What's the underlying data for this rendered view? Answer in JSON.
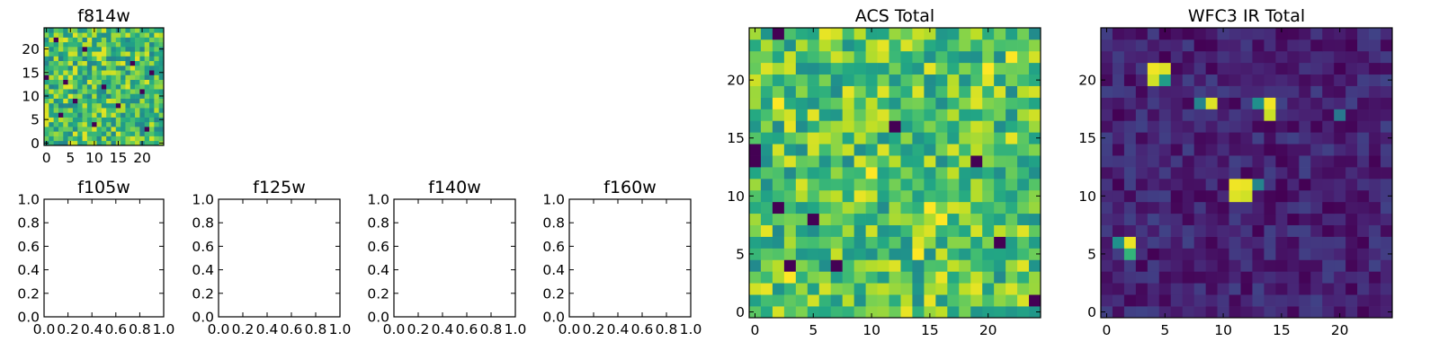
{
  "chart_data": [
    {
      "id": "f814w",
      "type": "heatmap",
      "title": "f814w",
      "colormap": "viridis",
      "grid_size": 25,
      "xlim": [
        -0.5,
        24.5
      ],
      "ylim": [
        -0.5,
        24.5
      ],
      "x_ticks": [
        0,
        5,
        10,
        15,
        20
      ],
      "y_ticks": [
        0,
        5,
        10,
        15,
        20
      ],
      "x_tick_labels": [
        "0",
        "5",
        "10",
        "15",
        "20"
      ],
      "y_tick_labels": [
        "0",
        "5",
        "10",
        "15",
        "20"
      ],
      "base_value": 0.7,
      "noise_amplitude": 0.26,
      "noise_seed": 814,
      "hot_pixels": [],
      "dark_pixels": [
        [
          2,
          22
        ],
        [
          8,
          20
        ],
        [
          18,
          17
        ],
        [
          22,
          15
        ],
        [
          4,
          13
        ],
        [
          12,
          12
        ],
        [
          20,
          11
        ],
        [
          6,
          9
        ],
        [
          15,
          8
        ],
        [
          3,
          6
        ],
        [
          10,
          4
        ],
        [
          21,
          3
        ],
        [
          0,
          14
        ]
      ]
    },
    {
      "id": "f105w",
      "type": "heatmap",
      "title": "f105w",
      "empty": true,
      "xlim": [
        0.0,
        1.0
      ],
      "ylim": [
        0.0,
        1.0
      ],
      "x_ticks": [
        0.0,
        0.2,
        0.4,
        0.6,
        0.8,
        1.0
      ],
      "y_ticks": [
        0.0,
        0.2,
        0.4,
        0.6,
        0.8,
        1.0
      ],
      "x_tick_labels": [
        "0.0",
        "0.2",
        "0.4",
        "0.6",
        "0.8",
        "1.0"
      ],
      "y_tick_labels": [
        "0.0",
        "0.2",
        "0.4",
        "0.6",
        "0.8",
        "1.0"
      ]
    },
    {
      "id": "f125w",
      "type": "heatmap",
      "title": "f125w",
      "empty": true,
      "xlim": [
        0.0,
        1.0
      ],
      "ylim": [
        0.0,
        1.0
      ],
      "x_ticks": [
        0.0,
        0.2,
        0.4,
        0.6,
        0.8,
        1.0
      ],
      "y_ticks": [
        0.0,
        0.2,
        0.4,
        0.6,
        0.8,
        1.0
      ],
      "x_tick_labels": [
        "0.0",
        "0.2",
        "0.4",
        "0.6",
        "0.8",
        "1.0"
      ],
      "y_tick_labels": [
        "0.0",
        "0.2",
        "0.4",
        "0.6",
        "0.8",
        "1.0"
      ]
    },
    {
      "id": "f140w",
      "type": "heatmap",
      "title": "f140w",
      "empty": true,
      "xlim": [
        0.0,
        1.0
      ],
      "ylim": [
        0.0,
        1.0
      ],
      "x_ticks": [
        0.0,
        0.2,
        0.4,
        0.6,
        0.8,
        1.0
      ],
      "y_ticks": [
        0.0,
        0.2,
        0.4,
        0.6,
        0.8,
        1.0
      ],
      "x_tick_labels": [
        "0.0",
        "0.2",
        "0.4",
        "0.6",
        "0.8",
        "1.0"
      ],
      "y_tick_labels": [
        "0.0",
        "0.2",
        "0.4",
        "0.6",
        "0.8",
        "1.0"
      ]
    },
    {
      "id": "f160w",
      "type": "heatmap",
      "title": "f160w",
      "empty": true,
      "xlim": [
        0.0,
        1.0
      ],
      "ylim": [
        0.0,
        1.0
      ],
      "x_ticks": [
        0.0,
        0.2,
        0.4,
        0.6,
        0.8,
        1.0
      ],
      "y_ticks": [
        0.0,
        0.2,
        0.4,
        0.6,
        0.8,
        1.0
      ],
      "x_tick_labels": [
        "0.0",
        "0.2",
        "0.4",
        "0.6",
        "0.8",
        "1.0"
      ],
      "y_tick_labels": [
        "0.0",
        "0.2",
        "0.4",
        "0.6",
        "0.8",
        "1.0"
      ]
    },
    {
      "id": "acs_total",
      "type": "heatmap",
      "title": "ACS Total",
      "colormap": "viridis",
      "grid_size": 25,
      "xlim": [
        -0.5,
        24.5
      ],
      "ylim": [
        -0.5,
        24.5
      ],
      "x_ticks": [
        0,
        5,
        10,
        15,
        20
      ],
      "y_ticks": [
        0,
        5,
        10,
        15,
        20
      ],
      "x_tick_labels": [
        "0",
        "5",
        "10",
        "15",
        "20"
      ],
      "y_tick_labels": [
        "0",
        "5",
        "10",
        "15",
        "20"
      ],
      "base_value": 0.72,
      "noise_amplitude": 0.25,
      "noise_seed": 4242,
      "hot_pixels": [
        [
          20,
          21
        ],
        [
          15,
          9
        ],
        [
          16,
          8
        ],
        [
          2,
          18
        ],
        [
          22,
          22
        ],
        [
          10,
          12
        ],
        [
          14,
          5
        ],
        [
          3,
          3
        ]
      ],
      "dark_pixels": [
        [
          2,
          24
        ],
        [
          0,
          14
        ],
        [
          0,
          13
        ],
        [
          2,
          9
        ],
        [
          3,
          4
        ],
        [
          7,
          4
        ],
        [
          19,
          13
        ],
        [
          24,
          1
        ],
        [
          12,
          16
        ],
        [
          5,
          8
        ],
        [
          21,
          6
        ]
      ]
    },
    {
      "id": "wfc3_ir_total",
      "type": "heatmap",
      "title": "WFC3 IR Total",
      "colormap": "viridis",
      "grid_size": 25,
      "xlim": [
        -0.5,
        24.5
      ],
      "ylim": [
        -0.5,
        24.5
      ],
      "x_ticks": [
        0,
        5,
        10,
        15,
        20
      ],
      "y_ticks": [
        0,
        5,
        10,
        15,
        20
      ],
      "x_tick_labels": [
        "0",
        "5",
        "10",
        "15",
        "20"
      ],
      "y_tick_labels": [
        "0",
        "5",
        "10",
        "15",
        "20"
      ],
      "base_value": 0.1,
      "noise_amplitude": 0.1,
      "noise_seed": 160,
      "hot_pixels": [
        [
          4,
          21,
          0.98
        ],
        [
          5,
          21,
          0.95
        ],
        [
          4,
          20,
          0.93
        ],
        [
          5,
          20,
          0.55
        ],
        [
          9,
          18,
          0.95
        ],
        [
          8,
          18,
          0.45
        ],
        [
          14,
          18,
          0.98
        ],
        [
          14,
          17,
          0.92
        ],
        [
          13,
          18,
          0.5
        ],
        [
          11,
          11,
          0.98
        ],
        [
          12,
          11,
          0.97
        ],
        [
          11,
          10,
          0.95
        ],
        [
          12,
          10,
          0.93
        ],
        [
          13,
          11,
          0.45
        ],
        [
          2,
          6,
          0.97
        ],
        [
          1,
          6,
          0.5
        ],
        [
          2,
          5,
          0.65
        ],
        [
          20,
          17,
          0.4
        ]
      ],
      "dark_pixels": []
    }
  ]
}
